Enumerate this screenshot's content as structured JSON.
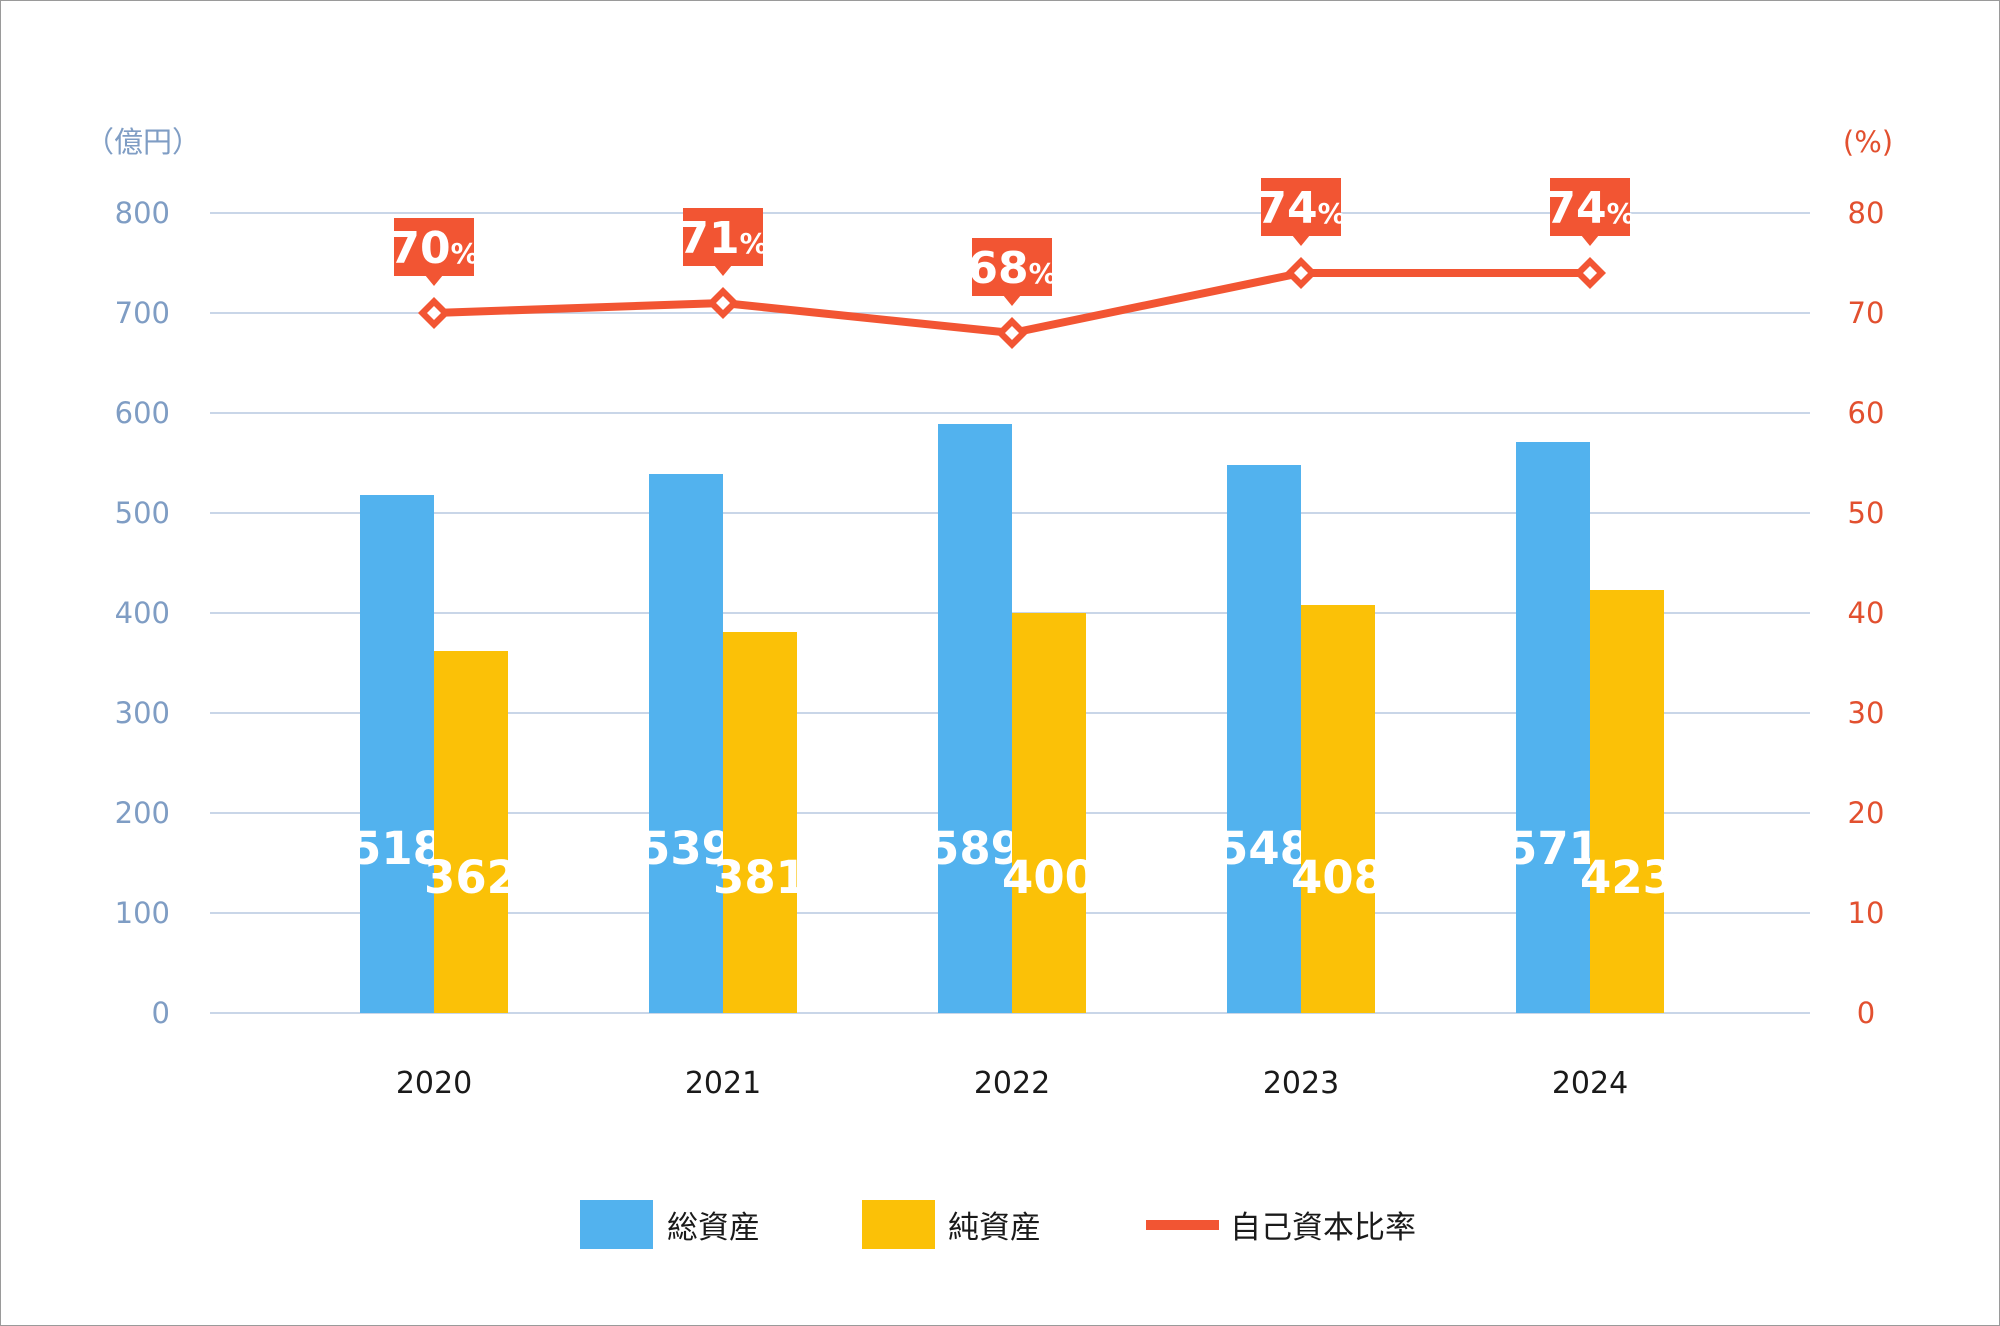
{
  "chart_data": {
    "type": "bar",
    "categories": [
      "2020",
      "2021",
      "2022",
      "2023",
      "2024"
    ],
    "series": [
      {
        "name": "総資産",
        "kind": "bar",
        "axis": "left",
        "color": "#52b2ee",
        "values": [
          518,
          539,
          589,
          548,
          571
        ]
      },
      {
        "name": "純資産",
        "kind": "bar",
        "axis": "left",
        "color": "#fbc107",
        "values": [
          362,
          381,
          400,
          408,
          423
        ]
      },
      {
        "name": "自己資本比率",
        "kind": "line",
        "axis": "right",
        "color": "#f25533",
        "values": [
          70,
          71,
          68,
          74,
          74
        ]
      }
    ],
    "left_axis": {
      "unit": "（億円）",
      "min": 0,
      "max": 800,
      "ticks": [
        "0",
        "100",
        "200",
        "300",
        "400",
        "500",
        "600",
        "700",
        "800"
      ]
    },
    "right_axis": {
      "unit": "(%)",
      "min": 0,
      "max": 80,
      "ticks": [
        "0",
        "10",
        "20",
        "30",
        "40",
        "50",
        "60",
        "70",
        "80"
      ]
    },
    "line_label_suffix": "%",
    "grid": true,
    "legend_position": "bottom"
  }
}
